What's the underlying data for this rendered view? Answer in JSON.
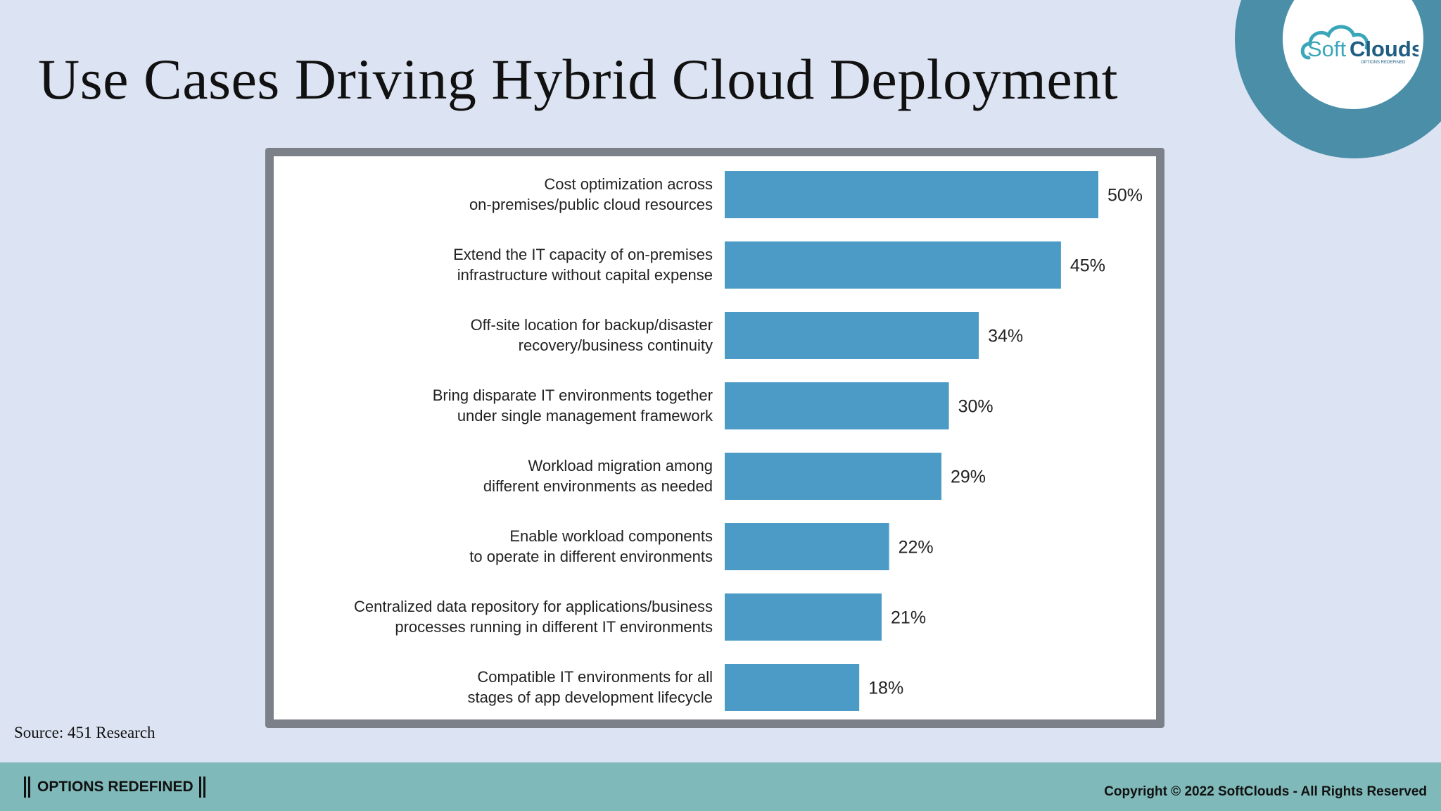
{
  "slide": {
    "title": "Use Cases Driving Hybrid Cloud Deployment",
    "source": "Source: 451 Research"
  },
  "logo": {
    "brand_soft": "Soft",
    "brand_clouds": "Clouds",
    "tagline": "OPTIONS REDEFINED",
    "icon": "cloud-logo-icon",
    "colors": {
      "ring": "#4a8ea8",
      "soft": "#3aa6b9",
      "clouds": "#1f5d82"
    }
  },
  "footer": {
    "tagline": "OPTIONS REDEFINED",
    "copyright": "Copyright © 2022 SoftClouds - All Rights Reserved",
    "color": "#80b9b9"
  },
  "chart_data": {
    "type": "bar",
    "orientation": "horizontal",
    "bar_color": "#4b9bc6",
    "value_suffix": "%",
    "categories": [
      [
        "Cost optimization across",
        "on-premises/public cloud resources"
      ],
      [
        "Extend the IT capacity of on-premises",
        "infrastructure without capital expense"
      ],
      [
        "Off-site location for backup/disaster",
        "recovery/business continuity"
      ],
      [
        "Bring disparate IT environments together",
        "under single management framework"
      ],
      [
        "Workload migration among",
        "different environments as needed"
      ],
      [
        "Enable workload components",
        "to operate in different environments"
      ],
      [
        "Centralized data repository for applications/business",
        "processes running in different IT environments"
      ],
      [
        "Compatible IT environments for all",
        "stages of app development lifecycle"
      ]
    ],
    "values": [
      50,
      45,
      34,
      30,
      29,
      22,
      21,
      18
    ],
    "labels": [
      "50%",
      "45%",
      "34%",
      "30%",
      "29%",
      "22%",
      "21%",
      "18%"
    ],
    "xlim": [
      0,
      50
    ],
    "grid": false,
    "legend": false
  }
}
